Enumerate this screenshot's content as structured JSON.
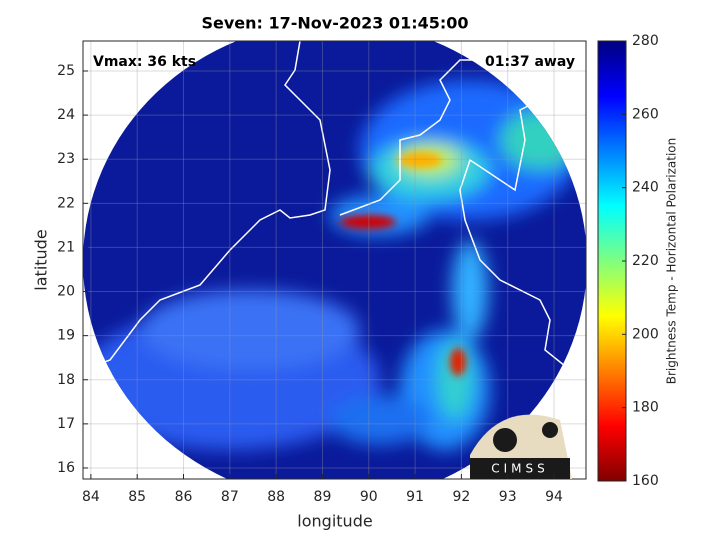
{
  "chart_data": {
    "type": "image",
    "title": "Seven: 17-Nov-2023 01:45:00",
    "annotations": [
      "Vmax: 36 kts",
      "01:37 away"
    ],
    "xlabel": "longitude",
    "ylabel": "latitude",
    "xlim": [
      83.83,
      94.69
    ],
    "xticks": [
      84,
      85,
      86,
      87,
      88,
      89,
      90,
      91,
      92,
      93,
      94
    ],
    "ylim": [
      15.75,
      25.68
    ],
    "yticks": [
      16,
      17,
      18,
      19,
      20,
      21,
      22,
      23,
      24,
      25
    ],
    "grid": true,
    "colorbar": {
      "label": "Brightness Temp - Horizontal Polarization",
      "clim": [
        160,
        280
      ],
      "ticks": [
        160,
        180,
        200,
        220,
        240,
        260,
        280
      ]
    },
    "logo_text": "CIMSS"
  }
}
